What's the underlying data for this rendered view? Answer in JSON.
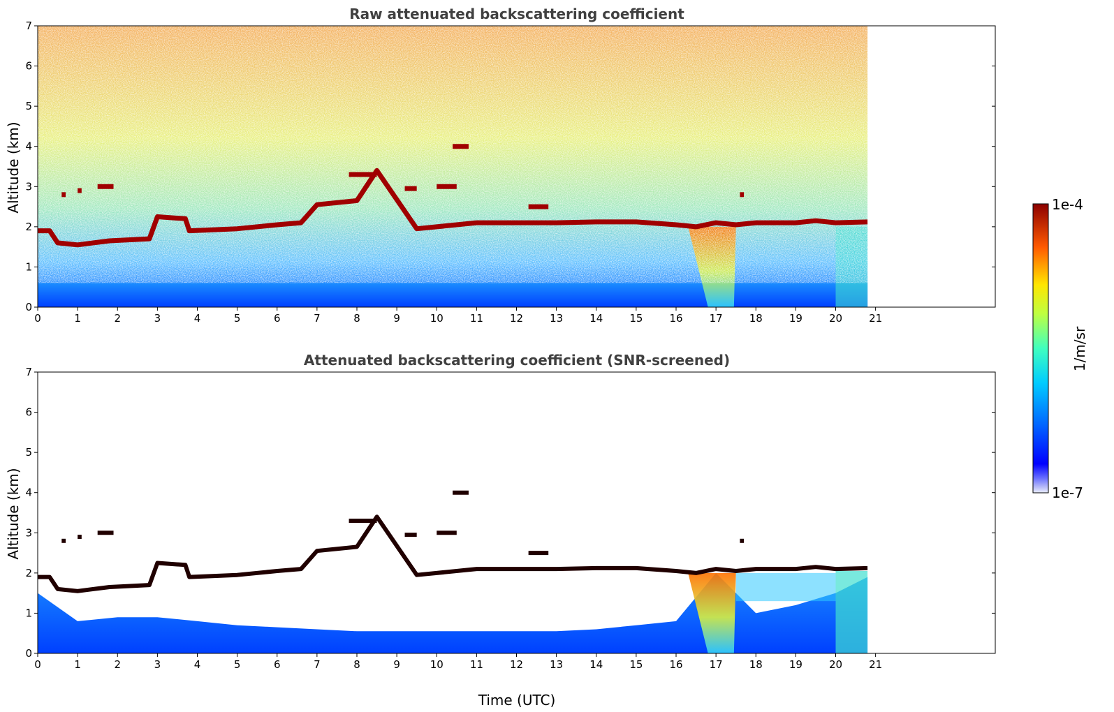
{
  "chart_data": [
    {
      "type": "heatmap",
      "title": "Raw attenuated backscattering coefficient",
      "xlabel": "",
      "ylabel": "Altitude (km)",
      "xlim": [
        0,
        24
      ],
      "ylim": [
        0,
        7
      ],
      "x_ticks": [
        "0",
        "1",
        "2",
        "3",
        "4",
        "5",
        "6",
        "7",
        "8",
        "9",
        "10",
        "11",
        "12",
        "13",
        "14",
        "15",
        "16",
        "17",
        "18",
        "19",
        "20",
        "21"
      ],
      "y_ticks": [
        "0",
        "1",
        "2",
        "3",
        "4",
        "5",
        "6",
        "7"
      ],
      "data_end_time": 20.8,
      "cloud_layer": {
        "time": [
          0,
          0.3,
          0.5,
          1.0,
          1.8,
          2.8,
          3.0,
          3.7,
          3.8,
          5.0,
          6.0,
          6.6,
          7.0,
          8.0,
          8.5,
          9.5,
          10.0,
          11.0,
          12.0,
          13.0,
          14.0,
          15.0,
          16.0,
          16.5,
          17.0,
          17.5,
          18.0,
          19.0,
          19.5,
          20.0,
          20.8
        ],
        "altitude_km": [
          1.9,
          1.9,
          1.6,
          1.55,
          1.65,
          1.7,
          2.25,
          2.2,
          1.9,
          1.95,
          2.05,
          2.1,
          2.55,
          2.65,
          3.4,
          1.95,
          2.0,
          2.1,
          2.1,
          2.1,
          2.12,
          2.12,
          2.05,
          2.0,
          2.1,
          2.05,
          2.1,
          2.1,
          2.15,
          2.1,
          2.12
        ]
      },
      "elevated_features": [
        {
          "time": [
            0.6,
            0.7
          ],
          "altitude_km": 2.8
        },
        {
          "time": [
            1.0,
            1.1
          ],
          "altitude_km": 2.9
        },
        {
          "time": [
            1.5,
            1.9
          ],
          "altitude_km": 3.0
        },
        {
          "time": [
            7.8,
            8.5
          ],
          "altitude_km": 3.3
        },
        {
          "time": [
            9.2,
            9.5
          ],
          "altitude_km": 2.95
        },
        {
          "time": [
            10.0,
            10.5
          ],
          "altitude_km": 3.0
        },
        {
          "time": [
            10.4,
            10.8
          ],
          "altitude_km": 4.0
        },
        {
          "time": [
            12.3,
            12.8
          ],
          "altitude_km": 2.5
        },
        {
          "time": [
            17.6,
            17.7
          ],
          "altitude_km": 2.8
        }
      ],
      "colorbar": {
        "min_label": "1e-7",
        "max_label": "1e-4",
        "label": "1/m/sr",
        "scale": "log"
      }
    },
    {
      "type": "heatmap",
      "title": "Attenuated backscattering coefficient (SNR-screened)",
      "xlabel": "Time (UTC)",
      "ylabel": "Altitude (km)",
      "xlim": [
        0,
        24
      ],
      "ylim": [
        0,
        7
      ],
      "x_ticks": [
        "0",
        "1",
        "2",
        "3",
        "4",
        "5",
        "6",
        "7",
        "8",
        "9",
        "10",
        "11",
        "12",
        "13",
        "14",
        "15",
        "16",
        "17",
        "18",
        "19",
        "20",
        "21"
      ],
      "y_ticks": [
        "0",
        "1",
        "2",
        "3",
        "4",
        "5",
        "6",
        "7"
      ],
      "data_end_time": 20.8,
      "screened_gap_bottom_km": {
        "time": [
          0,
          1,
          2,
          3,
          4,
          5,
          6,
          7,
          8,
          9,
          10,
          11,
          12,
          13,
          14,
          15,
          16,
          17,
          18,
          19,
          20,
          20.8
        ],
        "altitude_km": [
          1.5,
          0.8,
          0.9,
          0.9,
          0.8,
          0.7,
          0.65,
          0.6,
          0.55,
          0.55,
          0.55,
          0.55,
          0.55,
          0.55,
          0.6,
          0.7,
          0.8,
          2.0,
          1.0,
          1.2,
          1.5,
          1.9
        ]
      }
    }
  ],
  "colorbar": {
    "max_label": "1e-4",
    "min_label": "1e-7",
    "unit_label": "1/m/sr"
  }
}
